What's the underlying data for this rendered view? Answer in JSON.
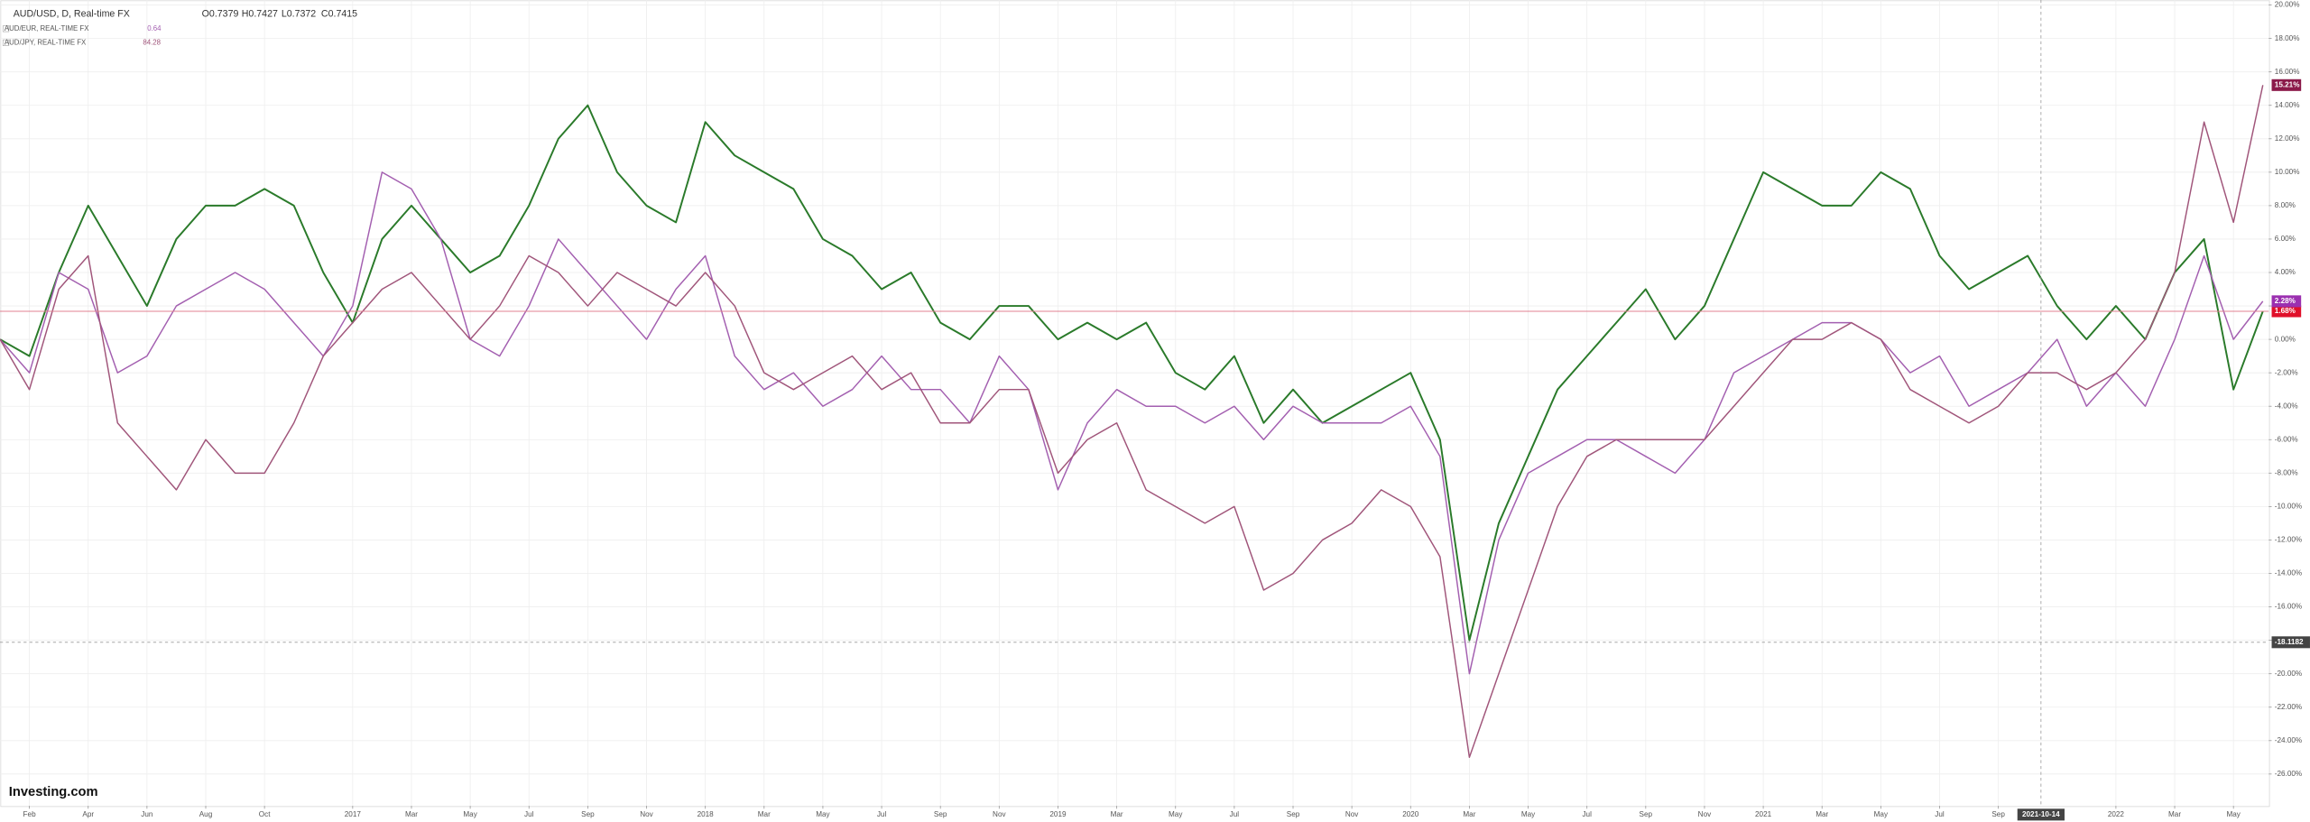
{
  "chart_data": {
    "type": "line",
    "title": "AUD/USD, D, Real-time FX",
    "ohlc_labels": [
      "O0.7379",
      "H0.7427",
      "L0.7372",
      "C0.7415"
    ],
    "logo": "Investing.com",
    "xlim": [
      0,
      77.2
    ],
    "ylim": [
      -27.9,
      20.3
    ],
    "grid": true,
    "xticks": [
      {
        "value": 1,
        "label": "Feb"
      },
      {
        "value": 3,
        "label": "Apr"
      },
      {
        "value": 5,
        "label": "Jun"
      },
      {
        "value": 7,
        "label": "Aug"
      },
      {
        "value": 9,
        "label": "Oct"
      },
      {
        "value": 12,
        "label": "2017"
      },
      {
        "value": 14,
        "label": "Mar"
      },
      {
        "value": 16,
        "label": "May"
      },
      {
        "value": 18,
        "label": "Jul"
      },
      {
        "value": 20,
        "label": "Sep"
      },
      {
        "value": 22,
        "label": "Nov"
      },
      {
        "value": 24,
        "label": "2018"
      },
      {
        "value": 26,
        "label": "Mar"
      },
      {
        "value": 28,
        "label": "May"
      },
      {
        "value": 30,
        "label": "Jul"
      },
      {
        "value": 32,
        "label": "Sep"
      },
      {
        "value": 34,
        "label": "Nov"
      },
      {
        "value": 36,
        "label": "2019"
      },
      {
        "value": 38,
        "label": "Mar"
      },
      {
        "value": 40,
        "label": "May"
      },
      {
        "value": 42,
        "label": "Jul"
      },
      {
        "value": 44,
        "label": "Sep"
      },
      {
        "value": 46,
        "label": "Nov"
      },
      {
        "value": 48,
        "label": "2020"
      },
      {
        "value": 50,
        "label": "Mar"
      },
      {
        "value": 52,
        "label": "May"
      },
      {
        "value": 54,
        "label": "Jul"
      },
      {
        "value": 56,
        "label": "Sep"
      },
      {
        "value": 58,
        "label": "Nov"
      },
      {
        "value": 60,
        "label": "2021"
      },
      {
        "value": 62,
        "label": "Mar"
      },
      {
        "value": 64,
        "label": "May"
      },
      {
        "value": 66,
        "label": "Jul"
      },
      {
        "value": 68,
        "label": "Sep"
      },
      {
        "value": 72,
        "label": "2022"
      },
      {
        "value": 74,
        "label": "Mar"
      },
      {
        "value": 76,
        "label": "May"
      }
    ],
    "yticks": [
      {
        "value": 20,
        "label": "20.00%"
      },
      {
        "value": 18,
        "label": "18.00%"
      },
      {
        "value": 16,
        "label": "16.00%"
      },
      {
        "value": 14,
        "label": "14.00%"
      },
      {
        "value": 12,
        "label": "12.00%"
      },
      {
        "value": 10,
        "label": "10.00%"
      },
      {
        "value": 8,
        "label": "8.00%"
      },
      {
        "value": 6,
        "label": "6.00%"
      },
      {
        "value": 4,
        "label": "4.00%"
      },
      {
        "value": 2,
        "label": "2.00%"
      },
      {
        "value": 0,
        "label": "0.00%"
      },
      {
        "value": -2,
        "label": "-2.00%"
      },
      {
        "value": -4,
        "label": "-4.00%"
      },
      {
        "value": -6,
        "label": "-6.00%"
      },
      {
        "value": -8,
        "label": "-8.00%"
      },
      {
        "value": -10,
        "label": "-10.00%"
      },
      {
        "value": -12,
        "label": "-12.00%"
      },
      {
        "value": -14,
        "label": "-14.00%"
      },
      {
        "value": -16,
        "label": "-16.00%"
      },
      {
        "value": -18,
        "label": "-18.00%"
      },
      {
        "value": -20,
        "label": "-20.00%"
      },
      {
        "value": -22,
        "label": "-22.00%"
      },
      {
        "value": -24,
        "label": "-24.00%"
      },
      {
        "value": -26,
        "label": "-26.00%"
      }
    ],
    "crosshair": {
      "x": {
        "value": 69.45,
        "label": "2021-10-14"
      },
      "y": {
        "value": -18.1182,
        "label": "-18.1182"
      }
    },
    "x": [
      0,
      1,
      2,
      3,
      4,
      5,
      6,
      7,
      8,
      9,
      10,
      11,
      12,
      13,
      14,
      15,
      16,
      17,
      18,
      19,
      20,
      21,
      22,
      23,
      24,
      25,
      26,
      27,
      28,
      29,
      30,
      31,
      32,
      33,
      34,
      35,
      36,
      37,
      38,
      39,
      40,
      41,
      42,
      43,
      44,
      45,
      46,
      47,
      48,
      49,
      50,
      51,
      52,
      53,
      54,
      55,
      56,
      57,
      58,
      59,
      60,
      61,
      62,
      63,
      64,
      65,
      66,
      67,
      68,
      69,
      70,
      71,
      72,
      73,
      74,
      75,
      76,
      77
    ],
    "series": [
      {
        "name": "AUD/USD",
        "color": "#2a7a2a",
        "last_color": "#e0102a",
        "values": [
          0,
          -1,
          4,
          8,
          5,
          2,
          6,
          8,
          8,
          9,
          8,
          4,
          1,
          6,
          8,
          6,
          4,
          5,
          8,
          12,
          14,
          10,
          8,
          7,
          13,
          11,
          10,
          9,
          6,
          5,
          3,
          4,
          1,
          0,
          2,
          2,
          0,
          1,
          0,
          1,
          -2,
          -3,
          -1,
          -5,
          -3,
          -5,
          -4,
          -3,
          -2,
          -6,
          -18,
          -11,
          -7,
          -3,
          -1,
          1,
          3,
          0,
          2,
          6,
          10,
          9,
          8,
          8,
          10,
          9,
          5,
          3,
          4,
          5,
          2,
          0,
          2,
          0,
          4,
          6,
          -3,
          1.68
        ],
        "value_labels": [
          null,
          null,
          null,
          null,
          null,
          null,
          null,
          null,
          null,
          null,
          null,
          null,
          null,
          null,
          null,
          null,
          null,
          null,
          null,
          null,
          null,
          null,
          null,
          null,
          null,
          null,
          null,
          null,
          null,
          null,
          null,
          null,
          null,
          null,
          null,
          null,
          null,
          null,
          null,
          null,
          null,
          null,
          null,
          null,
          null,
          null,
          null,
          null,
          null,
          null,
          null,
          null,
          null,
          null,
          null,
          null,
          null,
          null,
          null,
          null,
          null,
          null,
          null,
          null,
          null,
          null,
          null,
          null,
          null,
          null,
          null,
          null,
          null,
          null,
          null,
          null,
          null,
          "1.68%"
        ]
      },
      {
        "name": "AUD/EUR, REAL-TIME FX",
        "quote": "0.64",
        "color": "#a35fb0",
        "last_color": "#9b30b0",
        "values": [
          0,
          -2,
          4,
          3,
          -2,
          -1,
          2,
          3,
          4,
          3,
          1,
          -1,
          2,
          10,
          9,
          6,
          0,
          -1,
          2,
          6,
          4,
          2,
          0,
          3,
          5,
          -1,
          -3,
          -2,
          -4,
          -3,
          -1,
          -3,
          -3,
          -5,
          -1,
          -3,
          -9,
          -5,
          -3,
          -4,
          -4,
          -5,
          -4,
          -6,
          -4,
          -5,
          -5,
          -5,
          -4,
          -7,
          -20,
          -12,
          -8,
          -7,
          -6,
          -6,
          -7,
          -8,
          -6,
          -2,
          -1,
          0,
          1,
          1,
          0,
          -2,
          -1,
          -4,
          -3,
          -2,
          0,
          -4,
          -2,
          -4,
          0,
          5,
          0,
          2.28
        ],
        "value_labels": [
          null,
          null,
          null,
          null,
          null,
          null,
          null,
          null,
          null,
          null,
          null,
          null,
          null,
          null,
          null,
          null,
          null,
          null,
          null,
          null,
          null,
          null,
          null,
          null,
          null,
          null,
          null,
          null,
          null,
          null,
          null,
          null,
          null,
          null,
          null,
          null,
          null,
          null,
          null,
          null,
          null,
          null,
          null,
          null,
          null,
          null,
          null,
          null,
          null,
          null,
          null,
          null,
          null,
          null,
          null,
          null,
          null,
          null,
          null,
          null,
          null,
          null,
          null,
          null,
          null,
          null,
          null,
          null,
          null,
          null,
          null,
          null,
          null,
          null,
          null,
          null,
          null,
          "2.28%"
        ]
      },
      {
        "name": "AUD/JPY, REAL-TIME FX",
        "quote": "84.28",
        "color": "#a0557a",
        "last_color": "#8b1a4a",
        "values": [
          0,
          -3,
          3,
          5,
          -5,
          -7,
          -9,
          -6,
          -8,
          -8,
          -5,
          -1,
          1,
          3,
          4,
          2,
          0,
          2,
          5,
          4,
          2,
          4,
          3,
          2,
          4,
          2,
          -2,
          -3,
          -2,
          -1,
          -3,
          -2,
          -5,
          -5,
          -3,
          -3,
          -8,
          -6,
          -5,
          -9,
          -10,
          -11,
          -10,
          -15,
          -14,
          -12,
          -11,
          -9,
          -10,
          -13,
          -25,
          -20,
          -15,
          -10,
          -7,
          -6,
          -6,
          -6,
          -6,
          -4,
          -2,
          0,
          0,
          1,
          0,
          -3,
          -4,
          -5,
          -4,
          -2,
          -2,
          -3,
          -2,
          0,
          4,
          13,
          7,
          15.21
        ],
        "value_labels": [
          null,
          null,
          null,
          null,
          null,
          null,
          null,
          null,
          null,
          null,
          null,
          null,
          null,
          null,
          null,
          null,
          null,
          null,
          null,
          null,
          null,
          null,
          null,
          null,
          null,
          null,
          null,
          null,
          null,
          null,
          null,
          null,
          null,
          null,
          null,
          null,
          null,
          null,
          null,
          null,
          null,
          null,
          null,
          null,
          null,
          null,
          null,
          null,
          null,
          null,
          null,
          null,
          null,
          null,
          null,
          null,
          null,
          null,
          null,
          null,
          null,
          null,
          null,
          null,
          null,
          null,
          null,
          null,
          null,
          null,
          null,
          null,
          null,
          null,
          null,
          null,
          null,
          "15.21%"
        ]
      }
    ]
  }
}
